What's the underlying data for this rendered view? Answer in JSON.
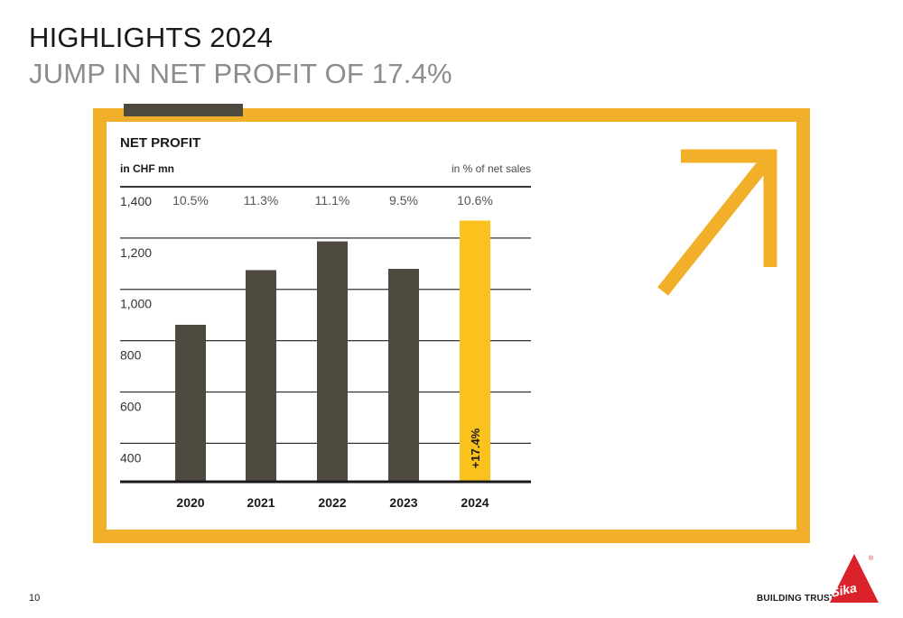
{
  "slide": {
    "title": "HIGHLIGHTS 2024",
    "subtitle": "JUMP IN NET PROFIT OF 17.4%",
    "page_number": "10",
    "brand_tagline": "BUILDING TRUST",
    "logo_text": "Sika",
    "logo_mark": "®",
    "colors": {
      "accent": "#f2b02a",
      "bar": "#4e4a40",
      "highlight_bar": "#fbc21d",
      "logo_red": "#d9222a"
    }
  },
  "chart_data": {
    "type": "bar",
    "title": "NET PROFIT",
    "unit_label": "in CHF mn",
    "percent_header": "in % of net sales",
    "categories": [
      "2020",
      "2021",
      "2022",
      "2023",
      "2024"
    ],
    "values": [
      862,
      1075,
      1187,
      1080,
      1268
    ],
    "percent_of_sales": [
      "10.5%",
      "11.3%",
      "11.1%",
      "9.5%",
      "10.6%"
    ],
    "highlight_index": 4,
    "highlight_label": "+17.4%",
    "y_ticks": [
      "1,400",
      "1,200",
      "1,000",
      "800",
      "600",
      "400"
    ],
    "ylim": [
      250,
      1400
    ],
    "grid": true
  }
}
